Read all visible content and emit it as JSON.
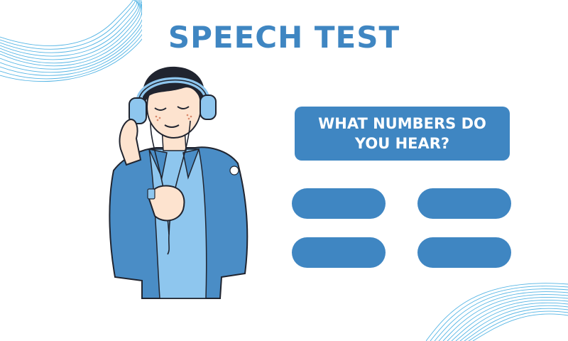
{
  "page": {
    "title": "SPEECH TEST",
    "question": "WHAT NUMBERS DO YOU HEAR?",
    "answers": [
      "",
      "",
      "",
      ""
    ]
  },
  "theme": {
    "accent": "#3f86c2",
    "light_blue": "#8ec6ee",
    "jacket_blue": "#4a8dc6",
    "skin": "#fde3cf",
    "hair": "#20242f",
    "wave_blue": "#37a8e0"
  },
  "illustration": {
    "subject": "person-with-headphones-icon",
    "decoration": "wave-lines-icon"
  }
}
